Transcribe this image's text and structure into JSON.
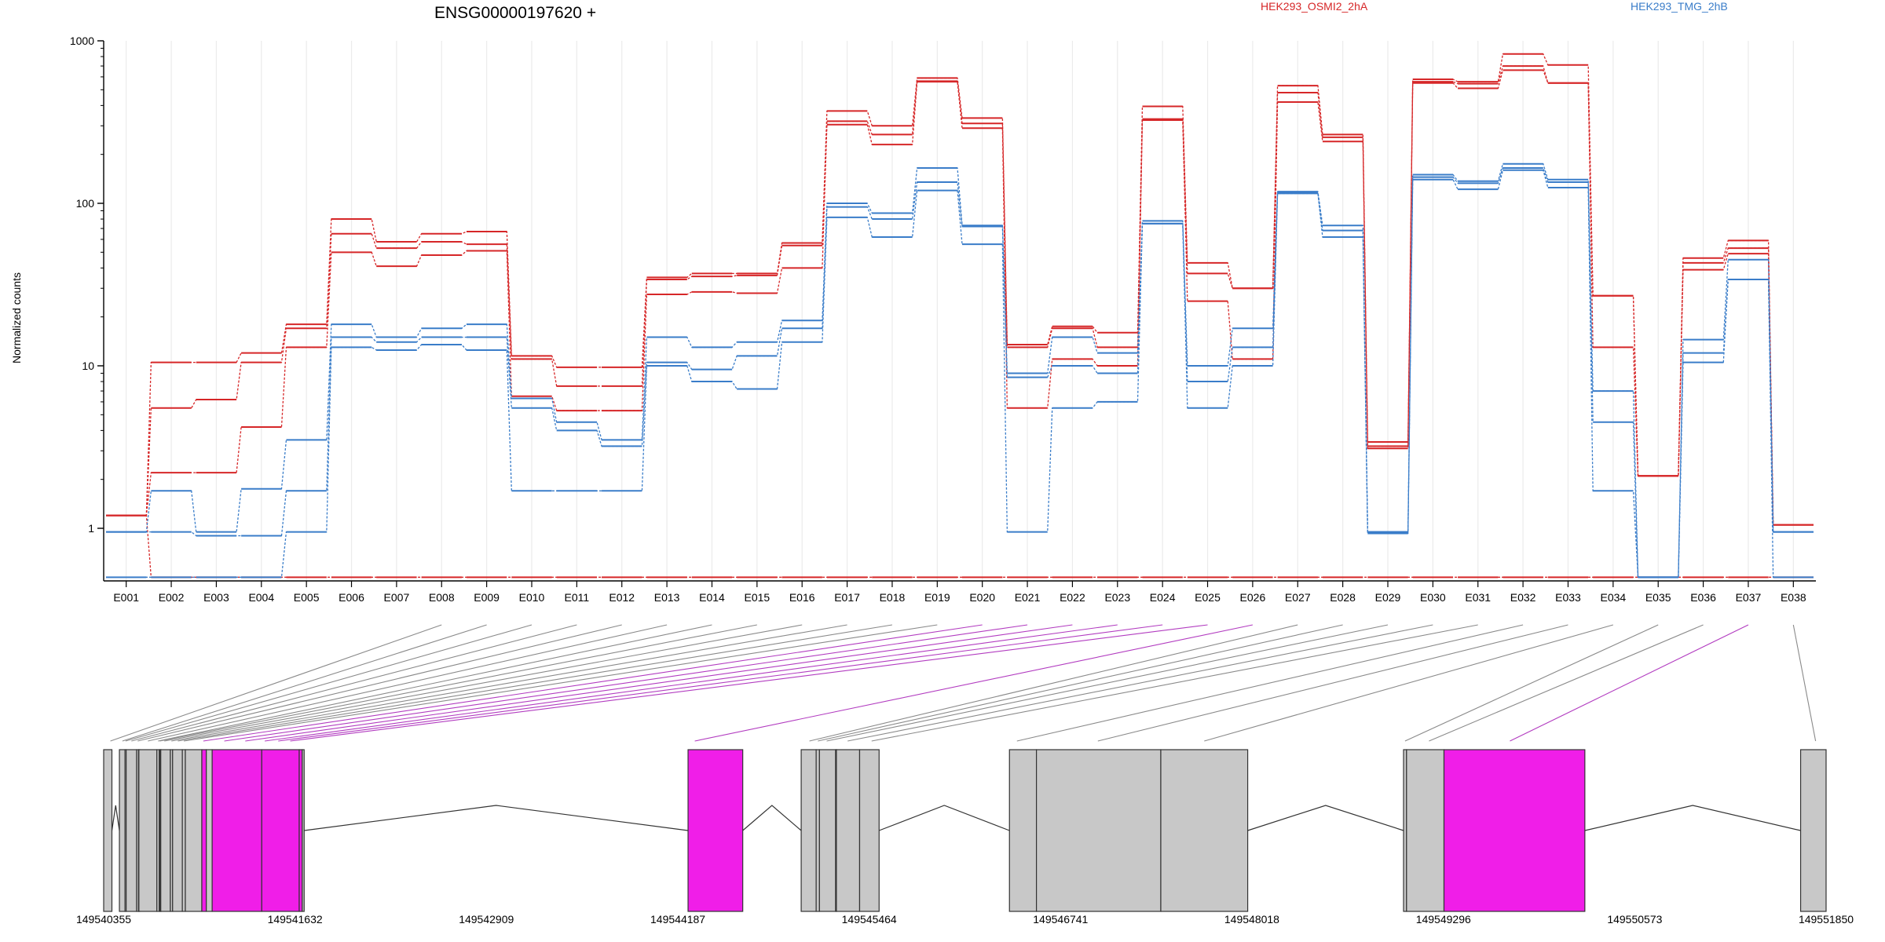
{
  "header": {
    "title": "ENSG00000197620 +",
    "legend": [
      {
        "label": "HEK293_OSMI2_2hA",
        "color": "#d62728"
      },
      {
        "label": "HEK293_TMG_2hB",
        "color": "#3a7dc9"
      }
    ]
  },
  "ylabel": "Normalized counts",
  "colors": {
    "red": "#d62728",
    "blue": "#3a7dc9",
    "highlight": "#f01ee8",
    "exon": "#c8c8c8"
  },
  "chart_data": {
    "type": "line",
    "title": "ENSG00000197620 +",
    "xlabel": "",
    "ylabel": "Normalized counts",
    "yscale": "log",
    "ylim": [
      0.5,
      1000
    ],
    "yticks": [
      "1",
      "10",
      "100",
      "1000"
    ],
    "grid": "vertical-light",
    "categories": [
      "E001",
      "E002",
      "E003",
      "E004",
      "E005",
      "E006",
      "E007",
      "E008",
      "E009",
      "E010",
      "E011",
      "E012",
      "E013",
      "E014",
      "E015",
      "E016",
      "E017",
      "E018",
      "E019",
      "E020",
      "E021",
      "E022",
      "E023",
      "E024",
      "E025",
      "E026",
      "E027",
      "E028",
      "E029",
      "E030",
      "E031",
      "E032",
      "E033",
      "E034",
      "E035",
      "E036",
      "E037",
      "E038"
    ],
    "series": [
      {
        "color": "red",
        "values": [
          1.2,
          10.5,
          10.5,
          12,
          18,
          80,
          58,
          65,
          67,
          11.5,
          9.8,
          9.8,
          35,
          37,
          37,
          57,
          370,
          300,
          590,
          335,
          13.5,
          17.5,
          16,
          395,
          43,
          30,
          530,
          265,
          3.4,
          580,
          560,
          830,
          710,
          27,
          2.1,
          46,
          59,
          1.05
        ]
      },
      {
        "color": "red",
        "values": [
          1.2,
          5.5,
          6.2,
          10.5,
          17,
          65,
          53,
          58,
          56,
          11,
          7.5,
          7.5,
          34,
          35.5,
          36,
          55,
          320,
          265,
          565,
          310,
          13,
          17,
          13,
          330,
          37,
          30,
          480,
          255,
          3.2,
          560,
          545,
          700,
          550,
          27,
          2.1,
          43,
          53,
          1.05
        ]
      },
      {
        "color": "red",
        "values": [
          1.2,
          2.2,
          2.2,
          4.2,
          13,
          50,
          41,
          48,
          51,
          6.5,
          5.3,
          5.3,
          27.5,
          28.5,
          28,
          40,
          305,
          230,
          560,
          290,
          5.5,
          11,
          10,
          325,
          25,
          11,
          420,
          240,
          3.1,
          550,
          510,
          660,
          550,
          13,
          2.1,
          39,
          49,
          1.05
        ]
      },
      {
        "color": "red",
        "values": [
          1.2,
          0.5,
          0.5,
          0.5,
          0.5,
          0.5,
          0.5,
          0.5,
          0.5,
          0.5,
          0.5,
          0.5,
          0.5,
          0.5,
          0.5,
          0.5,
          0.5,
          0.5,
          0.5,
          0.5,
          0.5,
          0.5,
          0.5,
          0.5,
          0.5,
          0.5,
          0.5,
          0.5,
          0.5,
          0.5,
          0.5,
          0.5,
          0.5,
          0.5,
          0.5,
          0.5,
          0.5,
          0.5
        ]
      },
      {
        "color": "blue",
        "values": [
          0.95,
          1.7,
          0.95,
          1.75,
          3.5,
          18,
          15,
          17,
          18,
          6.3,
          4.5,
          3.5,
          15,
          13,
          14,
          19,
          100,
          87,
          165,
          73,
          9,
          15,
          12,
          78,
          10,
          17,
          118,
          73,
          0.95,
          150,
          137,
          175,
          140,
          7,
          0.5,
          14.5,
          45,
          0.95
        ]
      },
      {
        "color": "blue",
        "values": [
          0.95,
          0.95,
          0.9,
          0.9,
          1.7,
          15,
          14,
          15,
          15,
          5.5,
          4,
          3.2,
          10.5,
          9.5,
          11.5,
          17,
          95,
          80,
          135,
          72,
          8.5,
          10,
          9,
          75,
          8,
          13,
          116,
          68,
          0.93,
          145,
          133,
          165,
          135,
          4.5,
          0.5,
          12,
          34,
          0.95
        ]
      },
      {
        "color": "blue",
        "values": [
          0.5,
          0.5,
          0.5,
          0.5,
          0.95,
          13,
          12.5,
          13.5,
          12.5,
          1.7,
          1.7,
          1.7,
          10,
          8,
          7.2,
          14,
          82,
          62,
          120,
          56,
          0.95,
          5.5,
          6,
          75,
          5.5,
          10,
          115,
          62,
          0.95,
          140,
          122,
          160,
          125,
          1.7,
          0.5,
          10.5,
          34,
          0.5
        ]
      }
    ]
  },
  "genome": {
    "coord_labels": [
      "149540355",
      "149541632",
      "149542909",
      "149544187",
      "149545464",
      "149546741",
      "149548018",
      "149549296",
      "149550573",
      "149551850"
    ],
    "exons": [
      {
        "start": 149540355,
        "end": 149540410,
        "hl": false
      },
      {
        "start": 149540460,
        "end": 149540497,
        "hl": false
      },
      {
        "start": 149540497,
        "end": 149540505,
        "hl": false
      },
      {
        "start": 149540505,
        "end": 149540575,
        "hl": false
      },
      {
        "start": 149540575,
        "end": 149540588,
        "hl": false
      },
      {
        "start": 149540588,
        "end": 149540590,
        "hl": false
      },
      {
        "start": 149540590,
        "end": 149540710,
        "hl": false
      },
      {
        "start": 149540710,
        "end": 149540726,
        "hl": false
      },
      {
        "start": 149540726,
        "end": 149540731,
        "hl": false
      },
      {
        "start": 149540731,
        "end": 149540736,
        "hl": false
      },
      {
        "start": 149540736,
        "end": 149540800,
        "hl": false
      },
      {
        "start": 149540800,
        "end": 149540815,
        "hl": false
      },
      {
        "start": 149540815,
        "end": 149540880,
        "hl": false
      },
      {
        "start": 149540880,
        "end": 149540900,
        "hl": false
      },
      {
        "start": 149540900,
        "end": 149541010,
        "hl": false
      },
      {
        "start": 149541010,
        "end": 149541040,
        "hl": true
      },
      {
        "start": 149541040,
        "end": 149541079,
        "hl": false
      },
      {
        "start": 149541079,
        "end": 149541410,
        "hl": true
      },
      {
        "start": 149541410,
        "end": 149541660,
        "hl": true
      },
      {
        "start": 149541660,
        "end": 149541680,
        "hl": true
      },
      {
        "start": 149541680,
        "end": 149541693,
        "hl": false
      },
      {
        "start": 149544255,
        "end": 149544620,
        "hl": true
      },
      {
        "start": 149545010,
        "end": 149545110,
        "hl": false
      },
      {
        "start": 149545110,
        "end": 149545132,
        "hl": false
      },
      {
        "start": 149545132,
        "end": 149545240,
        "hl": false
      },
      {
        "start": 149545240,
        "end": 149545245,
        "hl": false
      },
      {
        "start": 149545245,
        "end": 149545400,
        "hl": false
      },
      {
        "start": 149545400,
        "end": 149545530,
        "hl": false
      },
      {
        "start": 149546400,
        "end": 149546580,
        "hl": false
      },
      {
        "start": 149546580,
        "end": 149547410,
        "hl": false
      },
      {
        "start": 149547410,
        "end": 149547990,
        "hl": false
      },
      {
        "start": 149549030,
        "end": 149549050,
        "hl": false
      },
      {
        "start": 149549050,
        "end": 149549300,
        "hl": false
      },
      {
        "start": 149549300,
        "end": 149550240,
        "hl": true
      },
      {
        "start": 149551680,
        "end": 149551850,
        "hl": false
      }
    ],
    "introns": [
      [
        149540410,
        149540460
      ],
      [
        149541693,
        149544255
      ],
      [
        149544620,
        149545010
      ],
      [
        149545530,
        149546400
      ],
      [
        149547990,
        149549030
      ],
      [
        149550240,
        149551680
      ]
    ],
    "exon_links": [
      {
        "pos": 149540400,
        "hl": false
      },
      {
        "pos": 149540480,
        "hl": false
      },
      {
        "pos": 149540501,
        "hl": false
      },
      {
        "pos": 149540540,
        "hl": false
      },
      {
        "pos": 149540582,
        "hl": false
      },
      {
        "pos": 149540650,
        "hl": false
      },
      {
        "pos": 149540718,
        "hl": false
      },
      {
        "pos": 149540729,
        "hl": false
      },
      {
        "pos": 149540760,
        "hl": false
      },
      {
        "pos": 149540807,
        "hl": false
      },
      {
        "pos": 149540850,
        "hl": false
      },
      {
        "pos": 149540890,
        "hl": false
      },
      {
        "pos": 149541020,
        "hl": true
      },
      {
        "pos": 149541160,
        "hl": true
      },
      {
        "pos": 149541300,
        "hl": true
      },
      {
        "pos": 149541430,
        "hl": true
      },
      {
        "pos": 149541520,
        "hl": true
      },
      {
        "pos": 149541600,
        "hl": true
      },
      {
        "pos": 149544300,
        "hl": true
      },
      {
        "pos": 149545065,
        "hl": false
      },
      {
        "pos": 149545121,
        "hl": false
      },
      {
        "pos": 149545180,
        "hl": false
      },
      {
        "pos": 149545320,
        "hl": false
      },
      {
        "pos": 149545480,
        "hl": false
      },
      {
        "pos": 149546450,
        "hl": false
      },
      {
        "pos": 149546990,
        "hl": false
      },
      {
        "pos": 149547700,
        "hl": false
      },
      {
        "pos": 149549040,
        "hl": false
      },
      {
        "pos": 149549200,
        "hl": false
      },
      {
        "pos": 149549740,
        "hl": true
      },
      {
        "pos": 149551780,
        "hl": false
      }
    ]
  }
}
